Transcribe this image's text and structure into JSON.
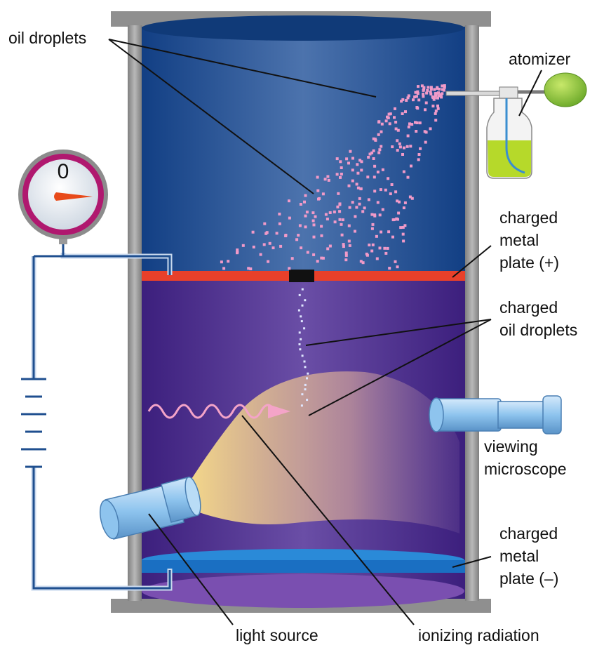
{
  "gauge": {
    "reading": "0"
  },
  "labels": {
    "oil_droplets": "oil droplets",
    "atomizer": "atomizer",
    "plate_pos": [
      "charged",
      "metal",
      "plate (+)"
    ],
    "charged_oil": [
      "charged",
      "oil droplets"
    ],
    "microscope": [
      "viewing",
      "microscope"
    ],
    "plate_neg": [
      "charged",
      "metal",
      "plate (–)"
    ],
    "light_source": "light source",
    "ionizing_radiation": "ionizing radiation"
  },
  "colors": {
    "upper_chamber": "#1e4f93",
    "lower_chamber": "#4a2a8c",
    "positive_plate": "#e8402a",
    "negative_plate": "#1a73c8",
    "frame": "#9a9a9a",
    "droplets": "#f19ac8",
    "atomizer_liquid": "#b6d92a",
    "atomizer_bulb": "#8cc43a",
    "wire": "#1f4f8f"
  }
}
